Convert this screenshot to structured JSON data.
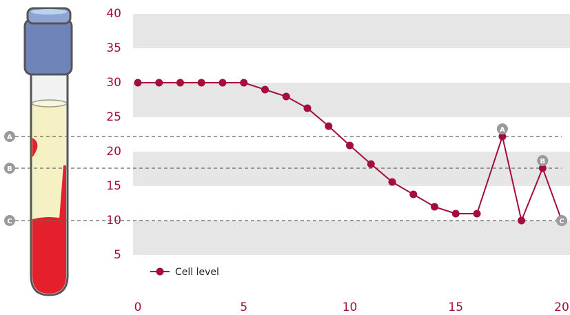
{
  "chart_data": {
    "type": "line",
    "x": [
      0,
      1,
      2,
      3,
      4,
      5,
      6,
      7,
      8,
      9,
      10,
      11,
      12,
      13,
      14,
      15,
      16,
      17.2,
      18.1,
      19.1,
      20
    ],
    "series": [
      {
        "name": "Cell level",
        "color": "#a50d3c",
        "values": [
          30,
          30,
          30,
          30,
          30,
          30,
          29,
          28,
          26.3,
          23.7,
          20.9,
          18.2,
          15.6,
          13.8,
          12,
          11,
          11,
          22.2,
          10,
          17.6,
          10
        ]
      }
    ],
    "xlim": [
      0,
      20
    ],
    "xticks": [
      0,
      5,
      10,
      15,
      20
    ],
    "ylim": [
      0,
      40
    ],
    "yticks": [
      5,
      10,
      15,
      20,
      25,
      30,
      35,
      40
    ],
    "reference_lines": [
      {
        "label": "A",
        "value": 22.2,
        "x": 17.2
      },
      {
        "label": "B",
        "value": 17.6,
        "x": 19.1
      },
      {
        "label": "C",
        "value": 10,
        "x": 20
      }
    ],
    "legend": "lower left"
  }
}
